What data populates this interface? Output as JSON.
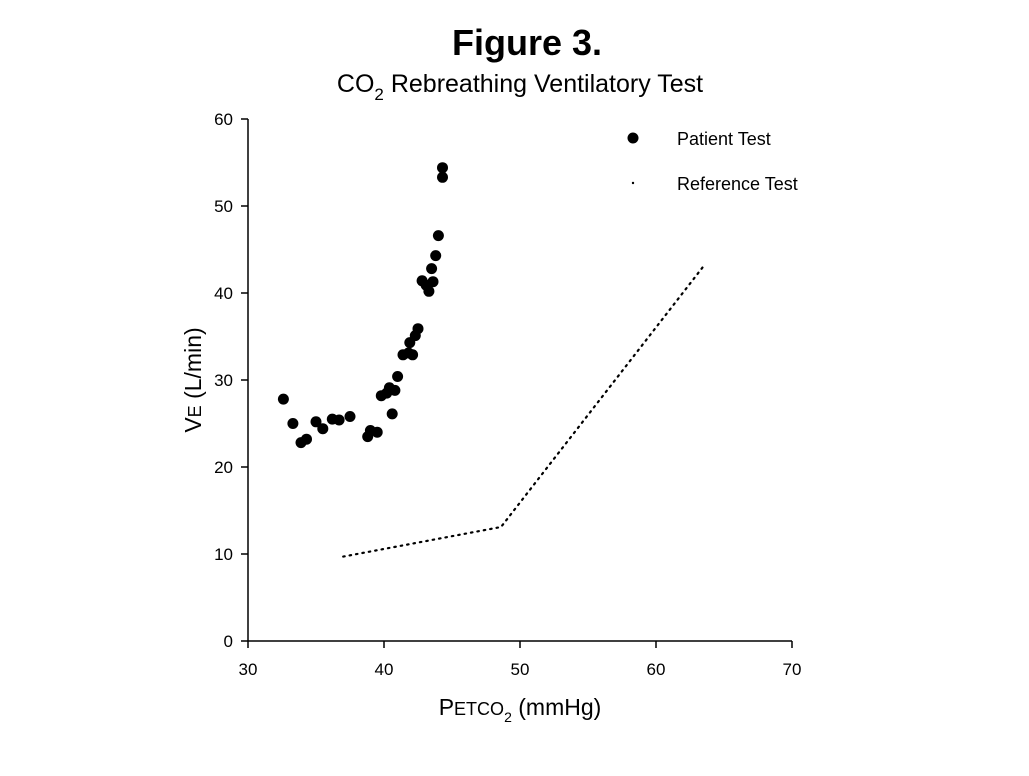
{
  "figure_label": "Figure 3.",
  "chart_data": {
    "type": "scatter",
    "title_main": "CO",
    "title_sub": "2",
    "title_rest": " Rebreathing Ventilatory Test",
    "xlabel": {
      "p": "P",
      "etco": "ETCO",
      "sub": "2",
      "units": " (mmHg)"
    },
    "ylabel": {
      "v": "V",
      "e": "E",
      "units": " (L/min)"
    },
    "xlim": [
      30,
      70
    ],
    "ylim": [
      0,
      60
    ],
    "xticks": [
      "30",
      "40",
      "50",
      "60",
      "70"
    ],
    "yticks": [
      "0",
      "10",
      "20",
      "30",
      "40",
      "50",
      "60"
    ],
    "legend_position": "top-right",
    "series": [
      {
        "name": "Patient Test",
        "kind": "scatter",
        "points": [
          [
            32.6,
            27.8
          ],
          [
            33.3,
            25.0
          ],
          [
            33.9,
            22.8
          ],
          [
            34.3,
            23.2
          ],
          [
            35.0,
            25.2
          ],
          [
            35.5,
            24.4
          ],
          [
            36.2,
            25.5
          ],
          [
            36.7,
            25.4
          ],
          [
            37.5,
            25.8
          ],
          [
            38.8,
            23.5
          ],
          [
            39.0,
            24.2
          ],
          [
            39.5,
            24.0
          ],
          [
            39.8,
            28.2
          ],
          [
            40.2,
            28.5
          ],
          [
            40.4,
            29.1
          ],
          [
            40.6,
            26.1
          ],
          [
            40.8,
            28.8
          ],
          [
            41.0,
            30.4
          ],
          [
            41.4,
            32.9
          ],
          [
            41.8,
            33.1
          ],
          [
            41.9,
            34.3
          ],
          [
            42.1,
            32.9
          ],
          [
            42.3,
            35.1
          ],
          [
            42.5,
            35.9
          ],
          [
            42.8,
            41.4
          ],
          [
            43.1,
            40.9
          ],
          [
            43.3,
            40.2
          ],
          [
            43.5,
            42.8
          ],
          [
            43.6,
            41.3
          ],
          [
            43.8,
            44.3
          ],
          [
            44.0,
            46.6
          ],
          [
            44.3,
            54.4
          ],
          [
            44.3,
            53.3
          ]
        ]
      },
      {
        "name": "Reference Test",
        "kind": "dotted-line",
        "points": [
          [
            37.0,
            9.7
          ],
          [
            48.6,
            13.1
          ],
          [
            63.6,
            43.3
          ]
        ]
      }
    ]
  }
}
